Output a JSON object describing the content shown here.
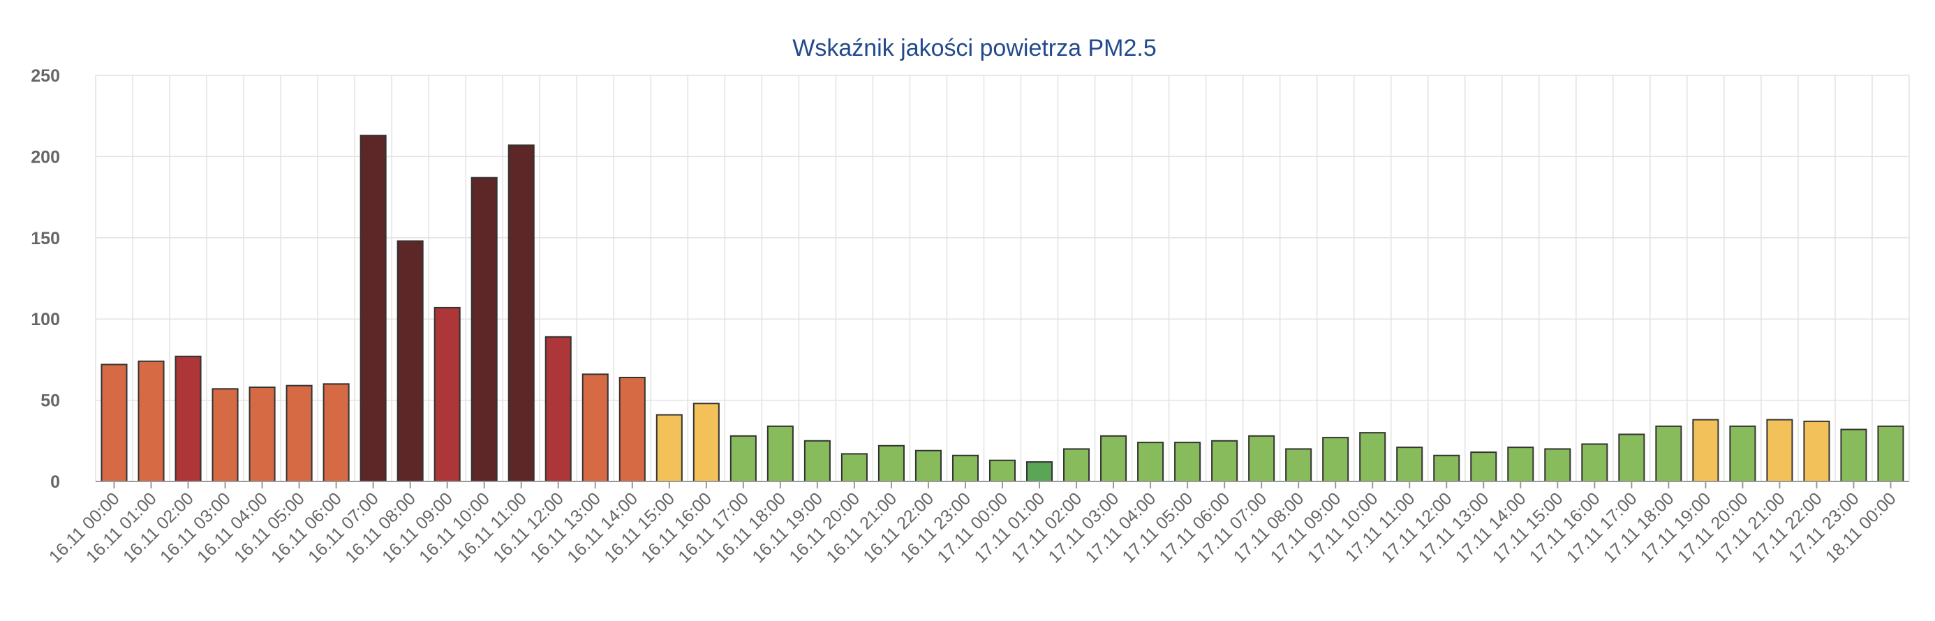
{
  "chart_data": {
    "type": "bar",
    "title": "Wskaźnik jakości powietrza PM2.5",
    "xlabel": "",
    "ylabel": "",
    "ylim": [
      0,
      250
    ],
    "yticks": [
      0,
      50,
      100,
      150,
      200,
      250
    ],
    "grid": true,
    "legend": "none",
    "colors": {
      "very_good": "#5ba556",
      "good": "#88bb5b",
      "moderate": "#f3c15a",
      "sufficient": "#d66a45",
      "bad": "#ac3638",
      "very_bad": "#5d2627"
    },
    "categories": [
      "16.11 00:00",
      "16.11 01:00",
      "16.11 02:00",
      "16.11 03:00",
      "16.11 04:00",
      "16.11 05:00",
      "16.11 06:00",
      "16.11 07:00",
      "16.11 08:00",
      "16.11 09:00",
      "16.11 10:00",
      "16.11 11:00",
      "16.11 12:00",
      "16.11 13:00",
      "16.11 14:00",
      "16.11 15:00",
      "16.11 16:00",
      "16.11 17:00",
      "16.11 18:00",
      "16.11 19:00",
      "16.11 20:00",
      "16.11 21:00",
      "16.11 22:00",
      "16.11 23:00",
      "17.11 00:00",
      "17.11 01:00",
      "17.11 02:00",
      "17.11 03:00",
      "17.11 04:00",
      "17.11 05:00",
      "17.11 06:00",
      "17.11 07:00",
      "17.11 08:00",
      "17.11 09:00",
      "17.11 10:00",
      "17.11 11:00",
      "17.11 12:00",
      "17.11 13:00",
      "17.11 14:00",
      "17.11 15:00",
      "17.11 16:00",
      "17.11 17:00",
      "17.11 18:00",
      "17.11 19:00",
      "17.11 20:00",
      "17.11 21:00",
      "17.11 22:00",
      "17.11 23:00",
      "18.11 00:00"
    ],
    "values": [
      72,
      74,
      77,
      57,
      58,
      59,
      60,
      213,
      148,
      107,
      187,
      207,
      89,
      66,
      64,
      41,
      48,
      28,
      34,
      25,
      17,
      22,
      19,
      16,
      13,
      12,
      20,
      28,
      24,
      24,
      25,
      28,
      20,
      27,
      30,
      21,
      16,
      18,
      21,
      20,
      23,
      29,
      34,
      38,
      34,
      38,
      37,
      32,
      34
    ],
    "bar_colors": [
      "sufficient",
      "sufficient",
      "bad",
      "sufficient",
      "sufficient",
      "sufficient",
      "sufficient",
      "very_bad",
      "very_bad",
      "bad",
      "very_bad",
      "very_bad",
      "bad",
      "sufficient",
      "sufficient",
      "moderate",
      "moderate",
      "good",
      "good",
      "good",
      "good",
      "good",
      "good",
      "good",
      "good",
      "very_good",
      "good",
      "good",
      "good",
      "good",
      "good",
      "good",
      "good",
      "good",
      "good",
      "good",
      "good",
      "good",
      "good",
      "good",
      "good",
      "good",
      "good",
      "moderate",
      "good",
      "moderate",
      "moderate",
      "good",
      "good"
    ]
  }
}
